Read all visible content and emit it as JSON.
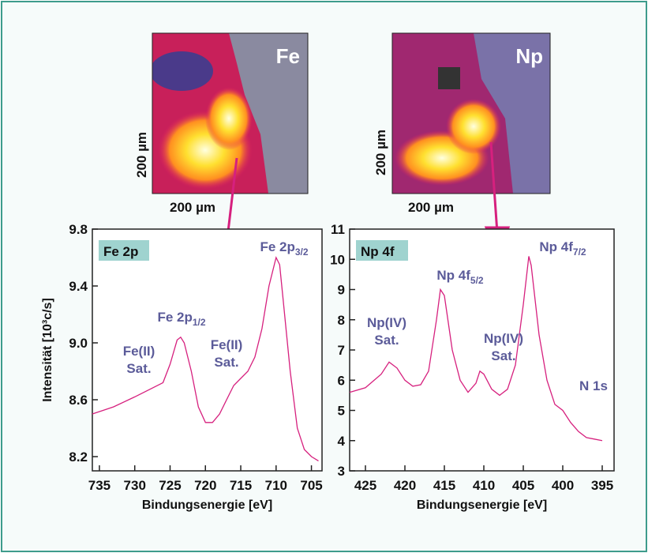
{
  "images": [
    {
      "label": "Fe",
      "scale_x": "200 µm",
      "scale_y": "200 µm"
    },
    {
      "label": "Np",
      "scale_x": "200 µm",
      "scale_y": "200 µm"
    }
  ],
  "chart_data": [
    {
      "type": "line",
      "box_label": "Fe 2p",
      "xlabel": "Bindungsenergie [eV]",
      "ylabel": "Intensität [10³c/s]",
      "color": "#d6207e",
      "xlim": [
        736,
        703.5
      ],
      "xticks": [
        735,
        730,
        725,
        720,
        715,
        710,
        705
      ],
      "ylim": [
        8.1,
        9.8
      ],
      "yticks": [
        {
          "value": 8.2,
          "label": "8.2"
        },
        {
          "value": 8.6,
          "label": "8.6"
        },
        {
          "value": 9,
          "label": "9.0"
        },
        {
          "value": 9.4,
          "label": "9.4"
        },
        {
          "value": 9.8,
          "label": "9.8"
        }
      ],
      "x": [
        736,
        733,
        730,
        728,
        726,
        725,
        724,
        723.5,
        723,
        722,
        721,
        720,
        719,
        718,
        717,
        716,
        715,
        714,
        713,
        712,
        711,
        710,
        709.5,
        709,
        708,
        707,
        706,
        705,
        704
      ],
      "values": [
        8.5,
        8.55,
        8.62,
        8.67,
        8.72,
        8.85,
        9.02,
        9.04,
        9.0,
        8.8,
        8.55,
        8.44,
        8.44,
        8.5,
        8.6,
        8.7,
        8.75,
        8.8,
        8.9,
        9.1,
        9.4,
        9.6,
        9.55,
        9.3,
        8.8,
        8.4,
        8.25,
        8.2,
        8.17
      ],
      "annotations": [
        {
          "lines": [
            "Fe(II)",
            "Sat."
          ]
        },
        {
          "lines": [
            "Fe 2p"
          ],
          "sub": "1/2"
        },
        {
          "lines": [
            "Fe(II)",
            "Sat."
          ]
        },
        {
          "lines": [
            "Fe 2p"
          ],
          "sub": "3/2"
        }
      ]
    },
    {
      "type": "line",
      "box_label": "Np 4f",
      "xlabel": "Bindungsenergie [eV]",
      "color": "#d6207e",
      "xlim": [
        427,
        393.5
      ],
      "xticks": [
        425,
        420,
        415,
        410,
        405,
        400,
        395
      ],
      "ylim": [
        3,
        11
      ],
      "yticks": [
        3,
        4,
        5,
        6,
        7,
        8,
        9,
        10,
        11
      ],
      "x": [
        427,
        425,
        423,
        422,
        421,
        420,
        419,
        418,
        417,
        416,
        415.5,
        415,
        414,
        413,
        412,
        411,
        410.5,
        410,
        409,
        408,
        407,
        406,
        405,
        404.3,
        404,
        403,
        402,
        401,
        400,
        399,
        398,
        397,
        396,
        395
      ],
      "values": [
        5.6,
        5.75,
        6.2,
        6.6,
        6.4,
        6.0,
        5.8,
        5.85,
        6.3,
        8.0,
        9.0,
        8.8,
        7.0,
        6.0,
        5.6,
        5.9,
        6.3,
        6.2,
        5.7,
        5.5,
        5.7,
        6.5,
        8.5,
        10.1,
        9.8,
        7.5,
        6.0,
        5.2,
        5.0,
        4.6,
        4.3,
        4.1,
        4.05,
        4.0
      ],
      "annotations": [
        {
          "lines": [
            "Np(IV)",
            "Sat."
          ]
        },
        {
          "lines": [
            "Np 4f"
          ],
          "sub": "5/2"
        },
        {
          "lines": [
            "Np(IV)",
            "Sat."
          ]
        },
        {
          "lines": [
            "Np 4f"
          ],
          "sub": "7/2"
        },
        {
          "lines": [
            "N 1s"
          ]
        }
      ]
    }
  ]
}
